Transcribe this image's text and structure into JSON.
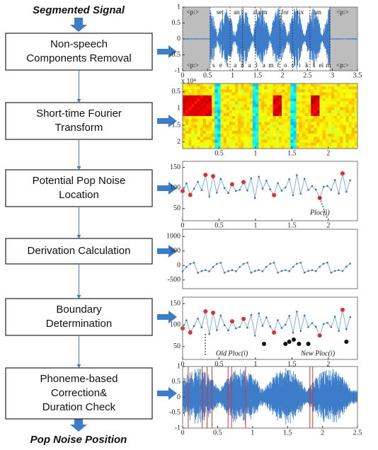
{
  "input": "Segmented Signal",
  "output": "Pop Noise Position",
  "steps": [
    {
      "lines": [
        "Non-speech",
        "Components Removal"
      ]
    },
    {
      "lines": [
        "Short-time Fourier",
        "Transform"
      ]
    },
    {
      "lines": [
        "Potential Pop Noise",
        "Location"
      ]
    },
    {
      "lines": [
        "Derivation Calculation"
      ]
    },
    {
      "lines": [
        "Boundary",
        "Determination"
      ]
    },
    {
      "lines": [
        "Phoneme-based",
        "Correction&",
        "Duration Check"
      ]
    }
  ],
  "plots": [
    {
      "xlim": [
        0,
        3.5
      ],
      "ylim": [
        -1,
        1
      ],
      "xticks": [
        0,
        0.5,
        1,
        1.5,
        2,
        2.5,
        3,
        3.5
      ],
      "yticks": [
        1,
        0.5,
        0,
        -0.5,
        -1
      ],
      "top_labels": [
        "<p:>",
        "set",
        "an",
        "alarm",
        "for",
        "six",
        "am",
        "<p:>"
      ],
      "bottom_labels": [
        "<p:>",
        "s",
        "e",
        "t",
        "a",
        "n",
        "a",
        "l",
        "a",
        "m",
        "f",
        "o",
        "s",
        "i",
        "k",
        "s",
        "ei",
        "m",
        "<p:>"
      ]
    },
    {
      "xlim": [
        0,
        2.4
      ],
      "ylim": [
        2.2,
        0.25
      ],
      "xticks": [
        0.5,
        1,
        1.5,
        2
      ],
      "yticks": [
        0.5,
        1,
        1.5,
        2
      ],
      "exponent_label": "x 10⁴"
    },
    {
      "xlim": [
        0,
        2.4
      ],
      "ylim": [
        20,
        165
      ],
      "xticks": [
        0,
        0.5,
        1,
        1.5,
        2
      ],
      "yticks": [
        150,
        100,
        50
      ],
      "annotations": [
        "Ploc(i)"
      ]
    },
    {
      "xlim": [
        0,
        2.4
      ],
      "ylim": [
        -800,
        1250
      ],
      "yticks": [
        1000,
        500,
        0,
        -500
      ]
    },
    {
      "xlim": [
        0,
        2.4
      ],
      "ylim": [
        20,
        165
      ],
      "xticks": [
        0,
        0.5,
        1,
        1.5,
        2
      ],
      "yticks": [
        150,
        100,
        50
      ],
      "annotations": [
        "Old Ploc(i)",
        "New Ploc(i)"
      ]
    },
    {
      "xlim": [
        0,
        2.5
      ],
      "ylim": [
        -1,
        1
      ],
      "xticks": [
        0,
        0.5,
        1,
        1.5,
        2,
        2.5
      ],
      "yticks": [
        1,
        0.5,
        0,
        -0.5,
        -1
      ]
    }
  ]
}
